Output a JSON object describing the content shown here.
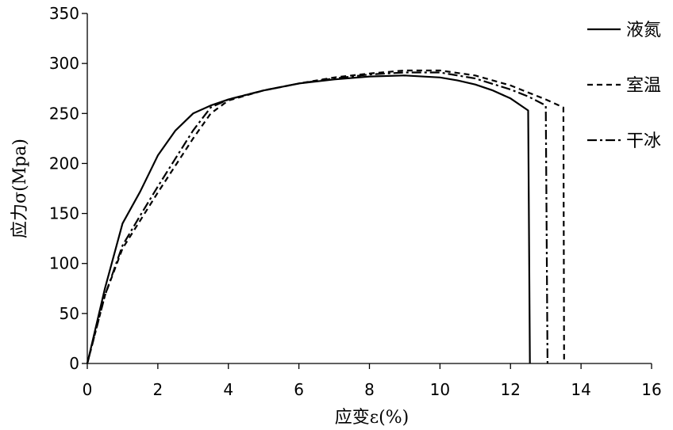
{
  "chart_data": {
    "type": "line",
    "title": "",
    "xlabel": "应变ε(%)",
    "ylabel": "应力σ(Mpa)",
    "xlim": [
      0,
      16
    ],
    "ylim": [
      0,
      350
    ],
    "xticks": [
      0,
      2,
      4,
      6,
      8,
      10,
      12,
      14,
      16
    ],
    "yticks": [
      0,
      50,
      100,
      150,
      200,
      250,
      300,
      350
    ],
    "grid": false,
    "legend": "right",
    "series": [
      {
        "name": "液氮",
        "dash": "solid",
        "color": "#000000",
        "x": [
          0,
          0.5,
          1.0,
          1.5,
          2.0,
          2.5,
          3.0,
          3.5,
          4.0,
          5.0,
          6.0,
          7.0,
          8.0,
          9.0,
          10.0,
          10.5,
          11.0,
          11.5,
          12.0,
          12.5,
          12.55
        ],
        "y": [
          0,
          75,
          140,
          172,
          208,
          233,
          250,
          258,
          264,
          273,
          280,
          284,
          287,
          288,
          286,
          283,
          279,
          273,
          265,
          253,
          0
        ]
      },
      {
        "name": "室温",
        "dash": "dashed",
        "color": "#000000",
        "x": [
          0,
          0.5,
          1.0,
          1.5,
          2.0,
          2.5,
          3.0,
          3.5,
          4.0,
          5.0,
          6.0,
          7.0,
          8.0,
          9.0,
          10.0,
          11.0,
          12.0,
          12.5,
          13.0,
          13.5,
          13.52
        ],
        "y": [
          0,
          68,
          115,
          143,
          171,
          198,
          225,
          250,
          263,
          273,
          280,
          286,
          290,
          293,
          293,
          288,
          278,
          271,
          264,
          256,
          0
        ]
      },
      {
        "name": "干冰",
        "dash": "dashdot",
        "color": "#000000",
        "x": [
          0,
          0.5,
          1.0,
          1.5,
          2.0,
          2.5,
          3.0,
          3.5,
          4.0,
          5.0,
          6.0,
          7.0,
          8.0,
          9.0,
          10.0,
          11.0,
          12.0,
          12.5,
          13.0,
          13.05
        ],
        "y": [
          0,
          68,
          118,
          148,
          177,
          205,
          233,
          256,
          264,
          273,
          280,
          285,
          289,
          291,
          291,
          285,
          274,
          267,
          258,
          0
        ]
      }
    ]
  }
}
